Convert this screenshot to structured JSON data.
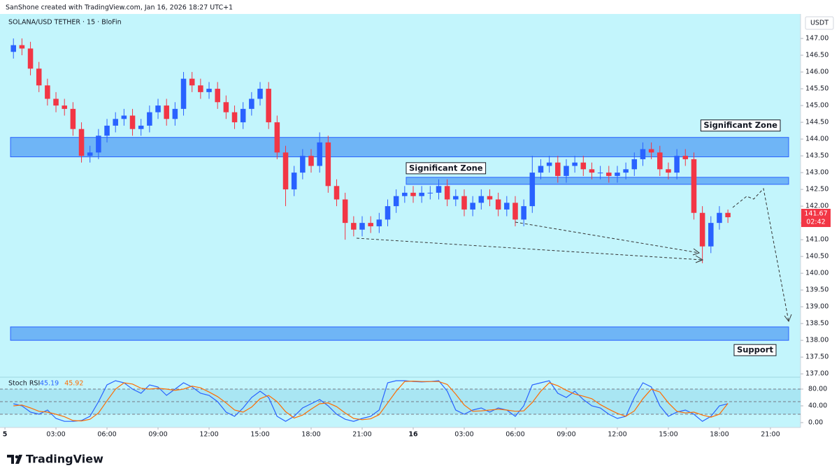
{
  "header": {
    "credit": "SanShone created with TradingView.com, Jan 16, 2026 18:27 UTC+1",
    "brand": "TradingView"
  },
  "chart_data": [
    {
      "type": "candlestick",
      "title": "SOLANA/USD TETHER · 15 · BloFin",
      "currency": "USDT",
      "countdown": "02:42",
      "up_color": "#2962ff",
      "down_color": "#f23645",
      "x": [
        0.5,
        1,
        1.5,
        2,
        2.5,
        3,
        3.5,
        4,
        4.5,
        5,
        5.5,
        6,
        6.5,
        7,
        7.5,
        8,
        8.5,
        9,
        9.5,
        10,
        10.5,
        11,
        11.5,
        12,
        12.5,
        13,
        13.5,
        14,
        14.5,
        15,
        15.5,
        16,
        16.5,
        17,
        17.5,
        18,
        18.5,
        19,
        19.5,
        20,
        20.5,
        21,
        21.5,
        22,
        22.5,
        23,
        23.5,
        24,
        24.5,
        25,
        25.5,
        26,
        26.5,
        27,
        27.5,
        28,
        28.5,
        29,
        29.5,
        30,
        30.5,
        31,
        31.5,
        32,
        32.5,
        33,
        33.5,
        34,
        34.5,
        35,
        35.5,
        36,
        36.5,
        37,
        37.5,
        38,
        38.5,
        39,
        39.5,
        40,
        40.5,
        41,
        41.5,
        42,
        42.5
      ],
      "open": [
        146.6,
        146.8,
        146.7,
        146.1,
        145.6,
        145.2,
        145.0,
        144.9,
        144.3,
        143.5,
        143.6,
        144.1,
        144.4,
        144.6,
        144.7,
        144.3,
        144.4,
        144.8,
        145.0,
        144.6,
        144.9,
        145.8,
        145.6,
        145.4,
        145.5,
        145.1,
        144.8,
        144.5,
        144.9,
        145.2,
        145.5,
        144.5,
        143.6,
        142.5,
        143.0,
        143.5,
        143.2,
        143.9,
        142.6,
        142.2,
        141.5,
        141.3,
        141.5,
        141.4,
        141.6,
        142.0,
        142.3,
        142.4,
        142.3,
        142.4,
        142.4,
        142.6,
        142.2,
        142.3,
        141.9,
        142.1,
        142.3,
        142.2,
        141.9,
        142.1,
        141.6,
        142.0,
        143.0,
        143.2,
        143.3,
        142.9,
        143.2,
        143.3,
        143.1,
        143.0,
        143.0,
        142.9,
        143.0,
        143.1,
        143.4,
        143.7,
        143.6,
        143.1,
        143.0,
        143.5,
        143.4,
        141.8,
        140.8,
        141.5,
        141.8
      ],
      "high": [
        147.0,
        147.0,
        146.9,
        146.3,
        145.8,
        145.4,
        145.2,
        145.1,
        144.5,
        143.8,
        144.3,
        144.6,
        144.8,
        144.9,
        144.9,
        144.6,
        145.0,
        145.2,
        145.2,
        145.1,
        146.0,
        146.0,
        145.8,
        145.7,
        145.7,
        145.3,
        145.0,
        145.1,
        145.4,
        145.7,
        145.7,
        144.7,
        143.8,
        143.2,
        143.7,
        143.7,
        144.2,
        144.1,
        142.8,
        142.4,
        141.7,
        141.7,
        141.7,
        141.8,
        142.2,
        142.5,
        142.6,
        142.6,
        142.6,
        142.6,
        142.8,
        142.8,
        142.5,
        142.5,
        142.3,
        142.5,
        142.5,
        142.4,
        142.3,
        142.3,
        142.2,
        143.5,
        143.4,
        143.5,
        143.5,
        143.4,
        143.5,
        143.5,
        143.3,
        143.2,
        143.2,
        143.2,
        143.3,
        143.6,
        143.9,
        143.9,
        143.8,
        143.3,
        143.7,
        143.7,
        143.6,
        142.0,
        141.7,
        142.0,
        141.9
      ],
      "low": [
        146.4,
        146.5,
        145.9,
        145.4,
        145.0,
        144.8,
        144.7,
        144.1,
        143.3,
        143.3,
        143.4,
        143.9,
        144.2,
        144.4,
        144.1,
        144.1,
        144.2,
        144.6,
        144.4,
        144.4,
        144.7,
        145.4,
        145.2,
        145.2,
        144.9,
        144.6,
        144.3,
        144.3,
        144.7,
        145.0,
        144.3,
        143.4,
        142.0,
        142.3,
        142.8,
        143.0,
        143.0,
        142.4,
        142.0,
        141.0,
        141.1,
        141.1,
        141.2,
        141.2,
        141.4,
        141.8,
        142.1,
        142.1,
        142.1,
        142.2,
        142.2,
        142.0,
        142.0,
        141.7,
        141.7,
        141.9,
        142.0,
        141.7,
        141.7,
        141.4,
        141.4,
        141.8,
        142.8,
        143.0,
        142.7,
        142.7,
        143.0,
        142.9,
        142.8,
        142.8,
        142.7,
        142.7,
        142.8,
        142.9,
        143.2,
        143.4,
        142.9,
        142.8,
        142.8,
        143.2,
        141.6,
        140.3,
        140.6,
        141.3,
        141.5
      ],
      "close": [
        146.8,
        146.7,
        146.1,
        145.6,
        145.2,
        145.0,
        144.9,
        144.3,
        143.5,
        143.6,
        144.1,
        144.4,
        144.6,
        144.7,
        144.3,
        144.4,
        144.8,
        145.0,
        144.6,
        144.9,
        145.8,
        145.6,
        145.4,
        145.5,
        145.1,
        144.8,
        144.5,
        144.9,
        145.2,
        145.5,
        144.5,
        143.6,
        142.5,
        143.0,
        143.5,
        143.2,
        143.9,
        142.6,
        142.2,
        141.5,
        141.3,
        141.5,
        141.4,
        141.6,
        142.0,
        142.3,
        142.4,
        142.3,
        142.4,
        142.4,
        142.6,
        142.2,
        142.3,
        141.9,
        142.1,
        142.3,
        142.2,
        141.9,
        142.1,
        141.6,
        142.0,
        143.0,
        143.2,
        143.3,
        142.9,
        143.2,
        143.3,
        143.1,
        143.0,
        143.0,
        142.9,
        143.0,
        143.1,
        143.4,
        143.7,
        143.6,
        143.1,
        143.0,
        143.5,
        143.4,
        141.8,
        140.8,
        141.5,
        141.8,
        141.67
      ],
      "xlim": [
        -0.29,
        46.77
      ],
      "ylim": [
        136.9,
        147.73
      ],
      "yticks": [
        {
          "value": 137,
          "label": "137.00"
        },
        {
          "value": 137.5,
          "label": "137.50"
        },
        {
          "value": 138,
          "label": "138.00"
        },
        {
          "value": 138.5,
          "label": "138.50"
        },
        {
          "value": 139,
          "label": "139.00"
        },
        {
          "value": 139.5,
          "label": "139.50"
        },
        {
          "value": 140,
          "label": "140.00"
        },
        {
          "value": 140.5,
          "label": "140.50"
        },
        {
          "value": 141,
          "label": "141.00"
        },
        {
          "value": 141.5,
          "label": "141.50"
        },
        {
          "value": 142,
          "label": "142.00"
        },
        {
          "value": 142.5,
          "label": "142.50"
        },
        {
          "value": 143,
          "label": "143.00"
        },
        {
          "value": 143.5,
          "label": "143.50"
        },
        {
          "value": 144,
          "label": "144.00"
        },
        {
          "value": 144.5,
          "label": "144.50"
        },
        {
          "value": 145,
          "label": "145.00"
        },
        {
          "value": 145.5,
          "label": "145.50"
        },
        {
          "value": 146,
          "label": "146.00"
        },
        {
          "value": 146.5,
          "label": "146.50"
        },
        {
          "value": 147,
          "label": "147.00"
        }
      ],
      "zones": [
        {
          "label": "Significant Zone",
          "top": 144.05,
          "bottom": 143.47,
          "from": 0,
          "to": 46.07
        },
        {
          "label": "Significant Zone",
          "top": 142.86,
          "bottom": 142.65,
          "from": 23.26,
          "to": 46.07
        },
        {
          "label": "Support",
          "top": 138.4,
          "bottom": 138.0,
          "from": 0,
          "to": 46.07
        }
      ],
      "grid": false
    },
    {
      "type": "line",
      "title": "Stoch RSI",
      "x": [
        0.5,
        1,
        1.5,
        2,
        2.5,
        3,
        3.5,
        4,
        4.5,
        5,
        5.5,
        6,
        6.5,
        7,
        7.5,
        8,
        8.5,
        9,
        9.5,
        10,
        10.5,
        11,
        11.5,
        12,
        12.5,
        13,
        13.5,
        14,
        14.5,
        15,
        15.5,
        16,
        16.5,
        17,
        17.5,
        18,
        18.5,
        19,
        19.5,
        20,
        20.5,
        21,
        21.5,
        22,
        22.5,
        23,
        23.5,
        24,
        24.5,
        25,
        25.5,
        26,
        26.5,
        27,
        27.5,
        28,
        28.5,
        29,
        29.5,
        30,
        30.5,
        31,
        31.5,
        32,
        32.5,
        33,
        33.5,
        34,
        34.5,
        35,
        35.5,
        36,
        36.5,
        37,
        37.5,
        38,
        38.5,
        39,
        39.5,
        40,
        40.5,
        41,
        41.5,
        42,
        42.5
      ],
      "series": [
        {
          "color": "#2962ff",
          "values": [
            45,
            40,
            25,
            20,
            30,
            10,
            3,
            3,
            5,
            15,
            50,
            90,
            100,
            95,
            80,
            70,
            90,
            85,
            65,
            80,
            95,
            85,
            70,
            65,
            50,
            25,
            15,
            35,
            60,
            75,
            60,
            15,
            3,
            15,
            35,
            45,
            55,
            40,
            20,
            8,
            3,
            10,
            15,
            30,
            95,
            100,
            100,
            98,
            97,
            98,
            100,
            75,
            30,
            20,
            30,
            35,
            25,
            35,
            30,
            15,
            40,
            90,
            95,
            100,
            70,
            60,
            75,
            55,
            40,
            35,
            20,
            10,
            15,
            60,
            95,
            85,
            40,
            15,
            25,
            30,
            20,
            3,
            15,
            40,
            45.19
          ]
        },
        {
          "color": "#ff6d00",
          "values": [
            40,
            42,
            35,
            27,
            25,
            20,
            14,
            5,
            4,
            8,
            23,
            52,
            80,
            95,
            92,
            82,
            80,
            82,
            80,
            77,
            80,
            87,
            83,
            73,
            62,
            47,
            30,
            25,
            37,
            57,
            65,
            50,
            26,
            11,
            18,
            32,
            45,
            47,
            38,
            23,
            10,
            7,
            9,
            19,
            47,
            75,
            98,
            99,
            98,
            98,
            98,
            91,
            68,
            42,
            27,
            28,
            30,
            32,
            30,
            27,
            28,
            48,
            75,
            95,
            88,
            77,
            68,
            63,
            57,
            43,
            32,
            22,
            15,
            28,
            57,
            80,
            73,
            47,
            27,
            23,
            25,
            18,
            13,
            20,
            45.92
          ]
        }
      ],
      "levels": [
        80,
        50,
        20
      ],
      "xlim": [
        -0.29,
        46.77
      ],
      "ylim": [
        -10,
        106.7
      ],
      "yticks": [
        {
          "value": 80,
          "label": "80.00"
        },
        {
          "value": 40,
          "label": "40.00"
        },
        {
          "value": 0,
          "label": "0.00"
        }
      ],
      "xticks": [
        {
          "value": 0,
          "label": "5"
        },
        {
          "value": 3,
          "label": "03:00"
        },
        {
          "value": 6,
          "label": "06:00"
        },
        {
          "value": 9,
          "label": "09:00"
        },
        {
          "value": 12,
          "label": "12:00"
        },
        {
          "value": 15,
          "label": "15:00"
        },
        {
          "value": 18,
          "label": "18:00"
        },
        {
          "value": 21,
          "label": "21:00"
        },
        {
          "value": 24,
          "label": "16"
        },
        {
          "value": 27,
          "label": "03:00"
        },
        {
          "value": 30,
          "label": "06:00"
        },
        {
          "value": 33,
          "label": "09:00"
        },
        {
          "value": 36,
          "label": "12:00"
        },
        {
          "value": 39,
          "label": "15:00"
        },
        {
          "value": 42,
          "label": "18:00"
        },
        {
          "value": 45,
          "label": "21:00"
        }
      ]
    }
  ]
}
